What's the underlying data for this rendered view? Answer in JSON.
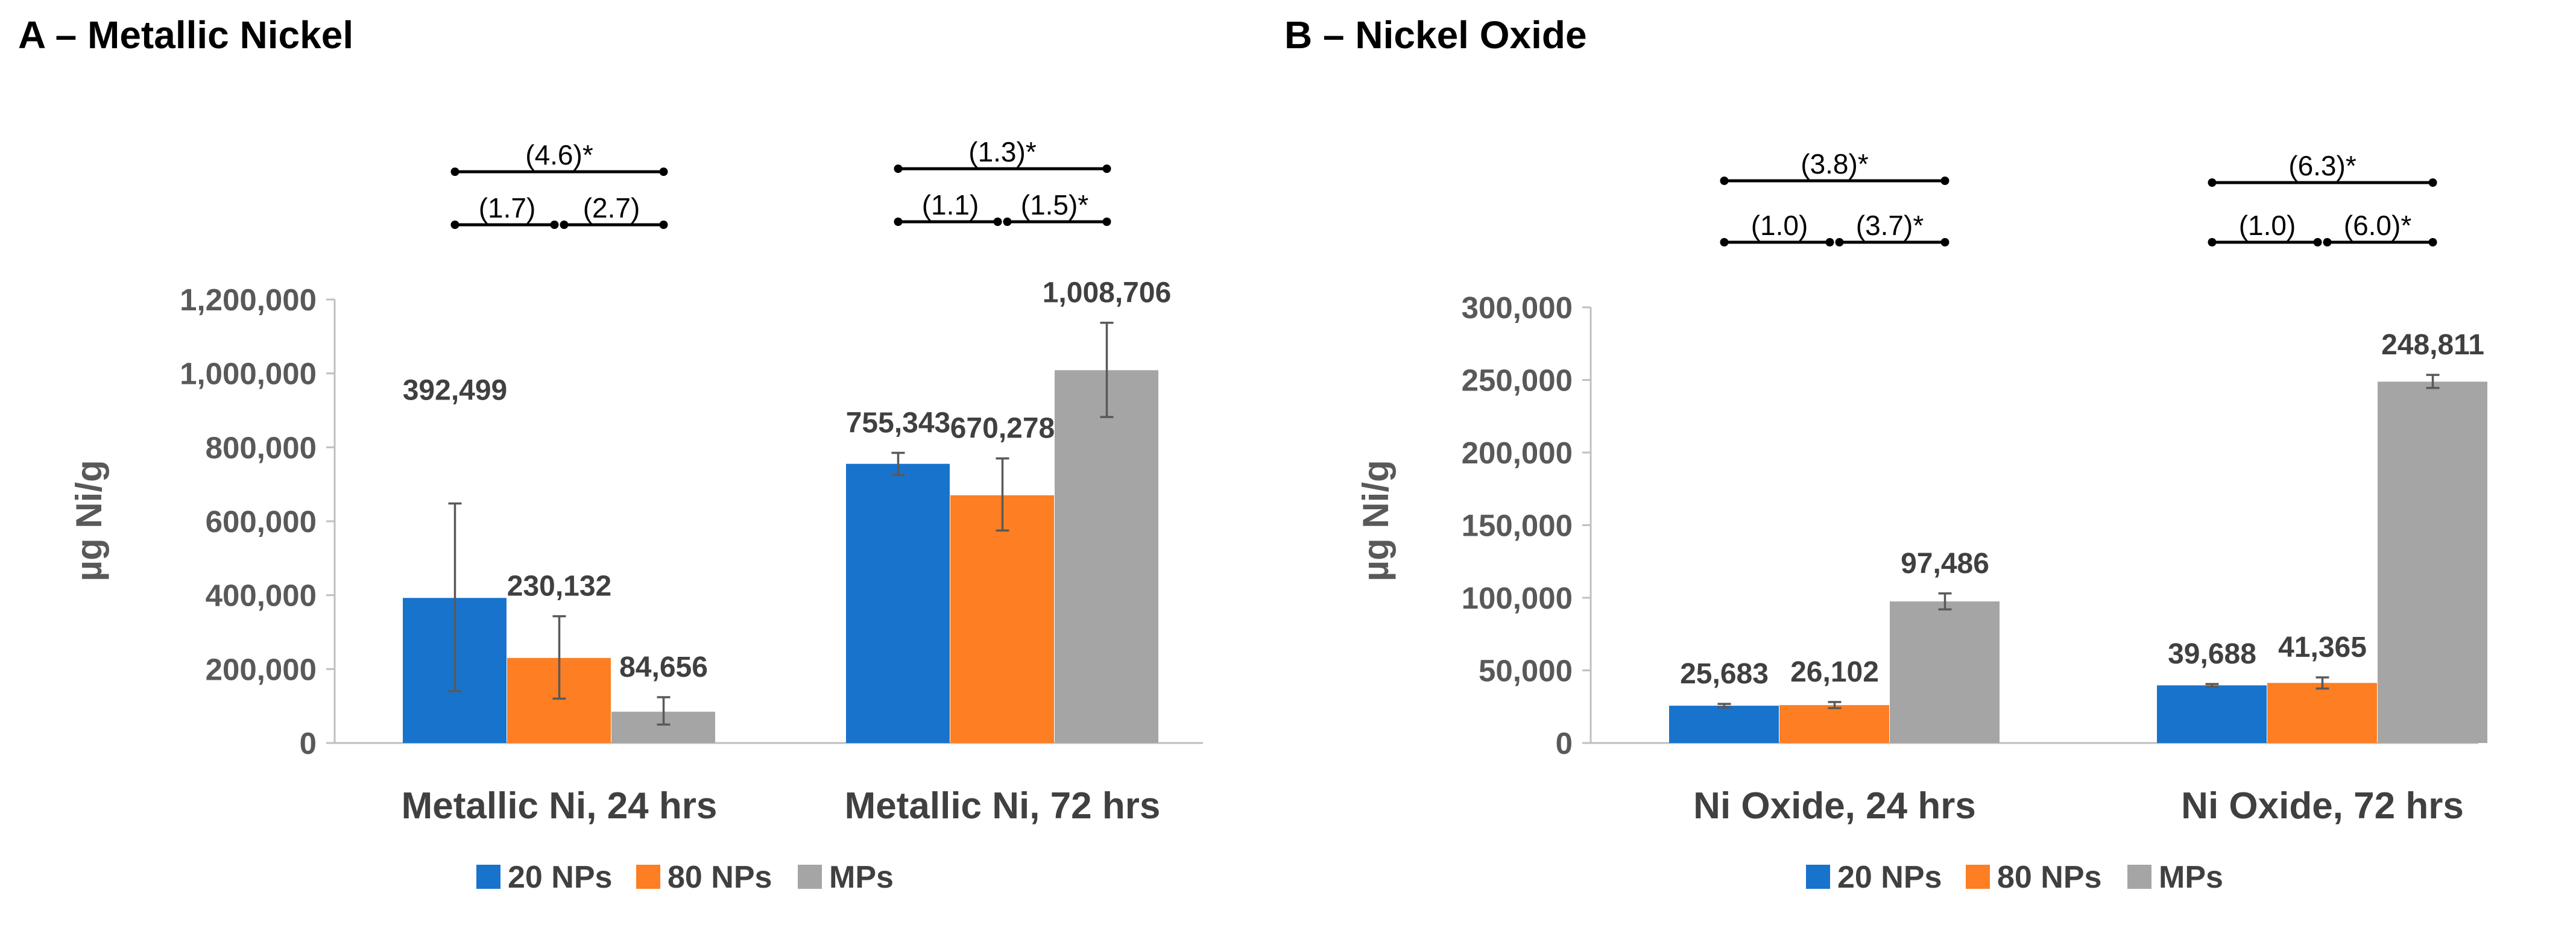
{
  "colors": {
    "series_20": "#1873cc",
    "series_80": "#fd7e23",
    "series_mp": "#a5a5a5"
  },
  "chart_data": [
    {
      "panel": "A",
      "type": "bar",
      "title": "A – Metallic Nickel",
      "ylabel": "µg Ni/g",
      "xlabel": "",
      "ylim": [
        0,
        1200000
      ],
      "ytick_values": [
        0,
        200000,
        400000,
        600000,
        800000,
        1000000,
        1200000
      ],
      "ytick_labels": [
        "0",
        "200,000",
        "400,000",
        "600,000",
        "800,000",
        "1,000,000",
        "1,200,000"
      ],
      "categories": [
        "Metallic Ni, 24 hrs",
        "Metallic Ni, 72 hrs"
      ],
      "series": [
        {
          "name": "20 NPs",
          "values": [
            392499,
            755343
          ],
          "labels": [
            "392,499",
            "755,343"
          ],
          "err_low": [
            140000,
            725000
          ],
          "err_high": [
            648000,
            785000
          ]
        },
        {
          "name": "80 NPs",
          "values": [
            230132,
            670278
          ],
          "labels": [
            "230,132",
            "670,278"
          ],
          "err_low": [
            120000,
            575000
          ],
          "err_high": [
            343000,
            770000
          ]
        },
        {
          "name": "MPs",
          "values": [
            84656,
            1008706
          ],
          "labels": [
            "84,656",
            "1,008,706"
          ],
          "err_low": [
            50000,
            882000
          ],
          "err_high": [
            124000,
            1137000
          ]
        }
      ],
      "comparisons": [
        {
          "group": 0,
          "top": "(4.6)*",
          "left": "(1.7)",
          "right": "(2.7)"
        },
        {
          "group": 1,
          "top": "(1.3)*",
          "left": "(1.1)",
          "right": "(1.5)*"
        }
      ],
      "legend": [
        "20 NPs",
        "80 NPs",
        "MPs"
      ],
      "legend_position": "bottom"
    },
    {
      "panel": "B",
      "type": "bar",
      "title": "B – Nickel Oxide",
      "ylabel": "µg Ni/g",
      "xlabel": "",
      "ylim": [
        0,
        300000
      ],
      "ytick_values": [
        0,
        50000,
        100000,
        150000,
        200000,
        250000,
        300000
      ],
      "ytick_labels": [
        "0",
        "50,000",
        "100,000",
        "150,000",
        "200,000",
        "250,000",
        "300,000"
      ],
      "categories": [
        "Ni Oxide, 24 hrs",
        "Ni Oxide, 72 hrs"
      ],
      "series": [
        {
          "name": "20 NPs",
          "values": [
            25683,
            39688
          ],
          "labels": [
            "25,683",
            "39,688"
          ],
          "err_low": [
            24500,
            38800
          ],
          "err_high": [
            26900,
            40600
          ]
        },
        {
          "name": "80 NPs",
          "values": [
            26102,
            41365
          ],
          "labels": [
            "26,102",
            "41,365"
          ],
          "err_low": [
            24000,
            37500
          ],
          "err_high": [
            28200,
            45200
          ]
        },
        {
          "name": "MPs",
          "values": [
            97486,
            248811
          ],
          "labels": [
            "97,486",
            "248,811"
          ],
          "err_low": [
            92000,
            244500
          ],
          "err_high": [
            103000,
            253500
          ]
        }
      ],
      "comparisons": [
        {
          "group": 0,
          "top": "(3.8)*",
          "left": "(1.0)",
          "right": "(3.7)*"
        },
        {
          "group": 1,
          "top": "(6.3)*",
          "left": "(1.0)",
          "right": "(6.0)*"
        }
      ],
      "legend": [
        "20 NPs",
        "80 NPs",
        "MPs"
      ],
      "legend_position": "bottom"
    }
  ]
}
